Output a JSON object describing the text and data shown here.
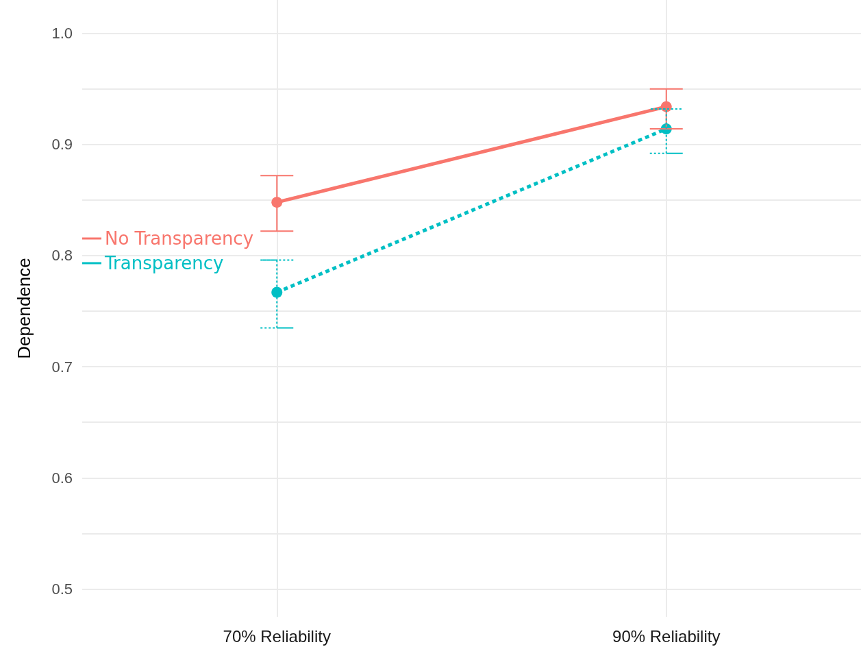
{
  "chart_data": {
    "type": "line",
    "ylabel": "Dependence",
    "categories": [
      "70% Reliability",
      "90% Reliability"
    ],
    "series": [
      {
        "name": "No Transparency",
        "color": "#f8766d",
        "values": [
          0.848,
          0.934
        ],
        "errors": [
          [
            0.822,
            0.872
          ],
          [
            0.914,
            0.95
          ]
        ],
        "line_style": "solid"
      },
      {
        "name": "Transparency",
        "color": "#00bfc4",
        "values": [
          0.767,
          0.914
        ],
        "errors": [
          [
            0.735,
            0.796
          ],
          [
            0.892,
            0.932
          ]
        ],
        "line_style": "dashed"
      }
    ],
    "ylim": [
      0.475,
      1.03
    ],
    "yticks": [
      0.5,
      {
        "value": 0.55,
        "label": null
      },
      0.6,
      {
        "value": 0.65,
        "label": null
      },
      0.7,
      {
        "value": 0.75,
        "label": null
      },
      0.8,
      {
        "value": 0.85,
        "label": null
      },
      0.9,
      {
        "value": 0.95,
        "label": null
      },
      {
        "value": 1,
        "label": "1.0"
      }
    ],
    "grid": true,
    "legend": "left",
    "marker": "circle"
  }
}
